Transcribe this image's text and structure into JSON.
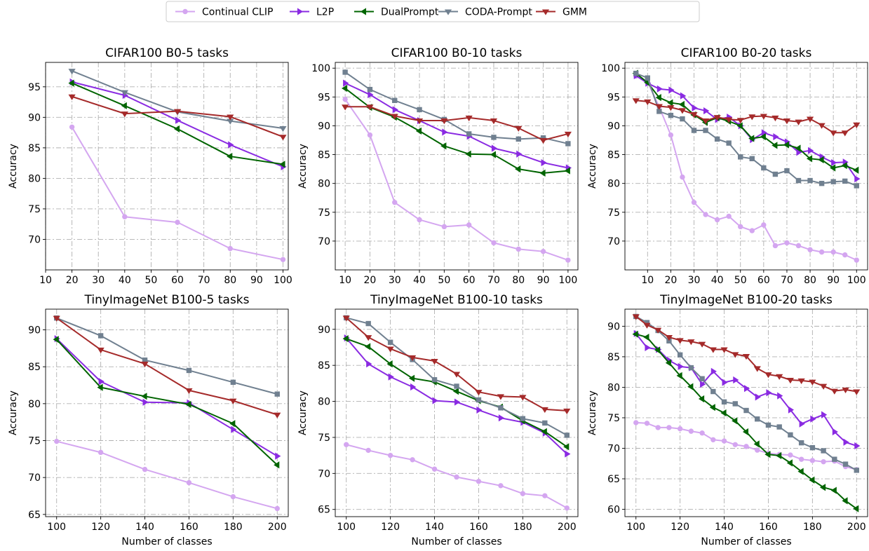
{
  "legend": [
    {
      "name": "Continual CLIP",
      "color": "#d4a6f0",
      "marker": "circle"
    },
    {
      "name": "L2P",
      "color": "#8a2be2",
      "marker": "triangle-right"
    },
    {
      "name": "DualPrompt",
      "color": "#006400",
      "marker": "triangle-left"
    },
    {
      "name": "CODA-Prompt",
      "color": "#708090",
      "marker": "triangle-down"
    },
    {
      "name": "GMM",
      "color": "#a52a2a",
      "marker": "triangle-down"
    }
  ],
  "chart_data": [
    {
      "type": "line",
      "title": "CIFAR100 B0-5 tasks",
      "xlabel": "",
      "ylabel": "Accuracy",
      "xlim": [
        10,
        102
      ],
      "ylim": [
        65,
        99
      ],
      "xticks": [
        10,
        20,
        30,
        40,
        50,
        60,
        70,
        80,
        90,
        100
      ],
      "yticks": [
        70,
        75,
        80,
        85,
        90,
        95
      ],
      "x": [
        20,
        40,
        60,
        80,
        100
      ],
      "series": [
        {
          "name": "Continual CLIP",
          "marker": "circle",
          "values": [
            88.4,
            73.7,
            72.8,
            68.5,
            66.7
          ]
        },
        {
          "name": "L2P",
          "marker": "triangle-right",
          "values": [
            95.8,
            93.6,
            89.5,
            85.5,
            81.9
          ]
        },
        {
          "name": "DualPrompt",
          "marker": "triangle-left",
          "values": [
            95.6,
            91.9,
            88.1,
            83.6,
            82.3
          ]
        },
        {
          "name": "CODA-Prompt",
          "marker": "triangle-down",
          "values": [
            97.6,
            94.1,
            90.9,
            89.4,
            88.2
          ]
        },
        {
          "name": "GMM",
          "marker": "triangle-down",
          "values": [
            93.4,
            90.6,
            91.0,
            90.1,
            86.8
          ]
        }
      ]
    },
    {
      "type": "line",
      "title": "CIFAR100 B0-10 tasks",
      "xlabel": "",
      "ylabel": "Accuracy",
      "xlim": [
        6,
        104
      ],
      "ylim": [
        65,
        101
      ],
      "xticks": [
        10,
        20,
        30,
        40,
        50,
        60,
        70,
        80,
        90,
        100
      ],
      "yticks": [
        70,
        75,
        80,
        85,
        90,
        95,
        100
      ],
      "x": [
        10,
        20,
        30,
        40,
        50,
        60,
        70,
        80,
        90,
        100
      ],
      "series": [
        {
          "name": "Continual CLIP",
          "marker": "circle",
          "values": [
            94.6,
            88.4,
            76.7,
            73.7,
            72.5,
            72.8,
            69.7,
            68.6,
            68.2,
            66.7
          ]
        },
        {
          "name": "L2P",
          "marker": "triangle-right",
          "values": [
            97.4,
            95.4,
            92.8,
            90.9,
            88.9,
            88.2,
            86.1,
            85.1,
            83.6,
            82.7
          ]
        },
        {
          "name": "DualPrompt",
          "marker": "triangle-left",
          "values": [
            96.5,
            93.2,
            91.5,
            89.1,
            86.5,
            85.1,
            85.0,
            82.5,
            81.8,
            82.2
          ]
        },
        {
          "name": "CODA-Prompt",
          "marker": "square",
          "values": [
            99.3,
            96.3,
            94.4,
            92.8,
            91.1,
            88.6,
            88.0,
            87.7,
            87.9,
            86.9
          ]
        },
        {
          "name": "GMM",
          "marker": "triangle-down",
          "values": [
            93.3,
            93.3,
            91.7,
            90.9,
            90.9,
            91.4,
            90.9,
            89.6,
            87.5,
            88.6
          ]
        }
      ]
    },
    {
      "type": "line",
      "title": "CIFAR100 B0-20 tasks",
      "xlabel": "",
      "ylabel": "Accuracy",
      "xlim": [
        0.25,
        104.75
      ],
      "ylim": [
        65,
        101
      ],
      "xticks": [
        10,
        20,
        30,
        40,
        50,
        60,
        70,
        80,
        90,
        100
      ],
      "yticks": [
        70,
        75,
        80,
        85,
        90,
        95,
        100
      ],
      "x": [
        5,
        10,
        15,
        20,
        25,
        30,
        35,
        40,
        45,
        50,
        55,
        60,
        65,
        70,
        75,
        80,
        85,
        90,
        95,
        100
      ],
      "series": [
        {
          "name": "Continual CLIP",
          "marker": "circle",
          "values": [
            98.6,
            97.6,
            93.3,
            88.4,
            81.1,
            76.7,
            74.6,
            73.7,
            74.3,
            72.5,
            71.8,
            72.8,
            69.2,
            69.7,
            69.2,
            68.5,
            68.1,
            68.1,
            67.6,
            66.7
          ]
        },
        {
          "name": "L2P",
          "marker": "triangle-right",
          "values": [
            98.7,
            97.4,
            96.4,
            96.2,
            95.2,
            93.1,
            92.6,
            91.1,
            91.5,
            90.0,
            87.6,
            88.8,
            88.1,
            87.2,
            85.4,
            85.7,
            84.6,
            83.6,
            83.7,
            80.8
          ]
        },
        {
          "name": "DualPrompt",
          "marker": "triangle-left",
          "values": [
            99.1,
            97.5,
            94.9,
            94.0,
            93.7,
            91.9,
            90.6,
            91.4,
            90.8,
            90.0,
            87.8,
            88.1,
            86.6,
            86.7,
            86.1,
            84.3,
            84.1,
            82.7,
            83.1,
            82.3
          ]
        },
        {
          "name": "CODA-Prompt",
          "marker": "square",
          "values": [
            99.1,
            98.3,
            92.5,
            91.8,
            91.2,
            89.2,
            89.2,
            87.7,
            87.0,
            84.6,
            84.3,
            82.7,
            81.6,
            82.2,
            80.5,
            80.5,
            80.0,
            80.3,
            80.4,
            79.6
          ]
        },
        {
          "name": "GMM",
          "marker": "triangle-down",
          "values": [
            94.4,
            94.2,
            93.4,
            93.2,
            92.7,
            92.0,
            90.9,
            91.5,
            91.1,
            91.0,
            91.6,
            91.7,
            91.4,
            90.9,
            90.7,
            91.2,
            90.1,
            88.8,
            88.8,
            90.2
          ]
        }
      ]
    },
    {
      "type": "line",
      "title": "TinyImageNet B100-5 tasks",
      "xlabel": "Number of classes",
      "ylabel": "Accuracy",
      "xlim": [
        95,
        205
      ],
      "ylim": [
        64.7,
        92.8
      ],
      "xticks": [
        100,
        120,
        140,
        160,
        180,
        200
      ],
      "yticks": [
        65,
        70,
        75,
        80,
        85,
        90
      ],
      "x": [
        100,
        120,
        140,
        160,
        180,
        200
      ],
      "series": [
        {
          "name": "Continual CLIP",
          "marker": "circle",
          "values": [
            74.9,
            73.4,
            71.1,
            69.3,
            67.4,
            65.8
          ]
        },
        {
          "name": "L2P",
          "marker": "triangle-right",
          "values": [
            88.8,
            83.0,
            80.2,
            80.1,
            76.5,
            72.9
          ]
        },
        {
          "name": "DualPrompt",
          "marker": "triangle-left",
          "values": [
            88.7,
            82.2,
            81.0,
            79.9,
            77.3,
            71.7
          ]
        },
        {
          "name": "CODA-Prompt",
          "marker": "square",
          "values": [
            91.6,
            89.2,
            85.9,
            84.5,
            82.9,
            81.3
          ]
        },
        {
          "name": "GMM",
          "marker": "triangle-down",
          "values": [
            91.6,
            87.3,
            85.4,
            81.8,
            80.4,
            78.5
          ]
        }
      ]
    },
    {
      "type": "line",
      "title": "TinyImageNet B100-10 tasks",
      "xlabel": "Number of classes",
      "ylabel": "Accuracy",
      "xlim": [
        95,
        205
      ],
      "ylim": [
        64.0,
        92.8
      ],
      "xticks": [
        100,
        120,
        140,
        160,
        180,
        200
      ],
      "yticks": [
        65,
        70,
        75,
        80,
        85,
        90
      ],
      "x": [
        100,
        110,
        120,
        130,
        140,
        150,
        160,
        170,
        180,
        190,
        200
      ],
      "series": [
        {
          "name": "Continual CLIP",
          "marker": "circle",
          "values": [
            74.0,
            73.2,
            72.5,
            71.9,
            70.6,
            69.5,
            68.9,
            68.3,
            67.2,
            66.9,
            65.2
          ]
        },
        {
          "name": "L2P",
          "marker": "triangle-right",
          "values": [
            88.8,
            85.2,
            83.4,
            82.0,
            80.1,
            79.9,
            78.8,
            77.7,
            77.1,
            75.6,
            72.7
          ]
        },
        {
          "name": "DualPrompt",
          "marker": "triangle-left",
          "values": [
            88.7,
            87.6,
            85.2,
            83.2,
            82.7,
            81.4,
            80.1,
            79.2,
            77.3,
            75.8,
            73.7
          ]
        },
        {
          "name": "CODA-Prompt",
          "marker": "square",
          "values": [
            91.6,
            90.8,
            88.2,
            85.8,
            83.0,
            82.1,
            80.2,
            79.1,
            77.6,
            77.0,
            75.3
          ]
        },
        {
          "name": "GMM",
          "marker": "triangle-down",
          "values": [
            91.6,
            88.9,
            87.3,
            86.1,
            85.6,
            83.8,
            81.3,
            80.7,
            80.6,
            78.9,
            78.7
          ]
        }
      ]
    },
    {
      "type": "line",
      "title": "TinyImageNet B100-20 tasks",
      "xlabel": "Number of classes",
      "ylabel": "Accuracy",
      "xlim": [
        95,
        205
      ],
      "ylim": [
        58.8,
        92.8
      ],
      "xticks": [
        100,
        120,
        140,
        160,
        180,
        200
      ],
      "yticks": [
        60,
        65,
        70,
        75,
        80,
        85,
        90
      ],
      "x": [
        100,
        105,
        110,
        115,
        120,
        125,
        130,
        135,
        140,
        145,
        150,
        155,
        160,
        165,
        170,
        175,
        180,
        185,
        190,
        195,
        200
      ],
      "series": [
        {
          "name": "Continual CLIP",
          "marker": "circle",
          "values": [
            74.2,
            74.1,
            73.4,
            73.4,
            73.2,
            72.8,
            72.5,
            71.4,
            71.2,
            70.6,
            70.3,
            69.7,
            69.2,
            69.0,
            68.9,
            68.2,
            68.0,
            67.8,
            67.9,
            67.0,
            66.5
          ]
        },
        {
          "name": "L2P",
          "marker": "triangle-right",
          "values": [
            88.8,
            86.5,
            86.2,
            84.4,
            83.4,
            83.2,
            80.5,
            82.6,
            80.8,
            81.2,
            79.8,
            78.4,
            79.1,
            78.6,
            76.3,
            74.0,
            74.8,
            75.5,
            72.7,
            71.0,
            70.4
          ]
        },
        {
          "name": "DualPrompt",
          "marker": "triangle-left",
          "values": [
            88.7,
            88.2,
            86.1,
            84.0,
            81.9,
            80.1,
            78.1,
            76.7,
            75.8,
            74.5,
            72.7,
            70.7,
            69.0,
            68.8,
            67.6,
            66.2,
            64.8,
            63.6,
            63.1,
            61.4,
            60.1
          ]
        },
        {
          "name": "CODA-Prompt",
          "marker": "square",
          "values": [
            91.6,
            90.6,
            89.3,
            87.6,
            85.3,
            83.2,
            81.4,
            79.3,
            77.6,
            77.3,
            76.2,
            74.8,
            73.8,
            73.5,
            72.2,
            70.9,
            70.1,
            69.6,
            68.2,
            67.4,
            66.4
          ]
        },
        {
          "name": "GMM",
          "marker": "triangle-down",
          "values": [
            91.6,
            90.2,
            89.4,
            88.2,
            87.7,
            87.5,
            87.1,
            86.2,
            86.2,
            85.4,
            85.1,
            83.1,
            82.1,
            81.8,
            81.2,
            81.1,
            80.9,
            80.2,
            79.4,
            79.6,
            79.3
          ]
        }
      ]
    }
  ]
}
